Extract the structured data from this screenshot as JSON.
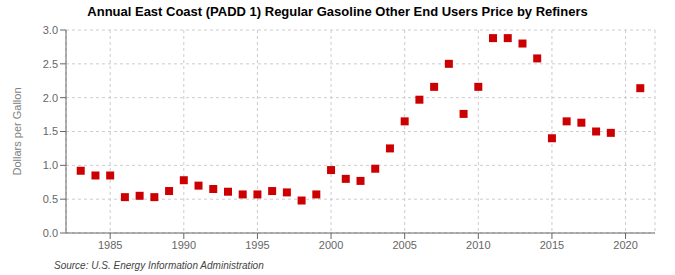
{
  "chart_data": {
    "type": "scatter",
    "title": "Annual East Coast (PADD 1) Regular Gasoline Other End Users Price by Refiners",
    "ylabel": "Dollars per Gallon",
    "annotation": "Source: U.S. Energy Information Administration",
    "x": [
      1983,
      1984,
      1985,
      1986,
      1987,
      1988,
      1989,
      1990,
      1991,
      1992,
      1993,
      1994,
      1995,
      1996,
      1997,
      1998,
      1999,
      2000,
      2001,
      2002,
      2003,
      2004,
      2005,
      2006,
      2007,
      2008,
      2009,
      2010,
      2011,
      2012,
      2013,
      2014,
      2015,
      2016,
      2017,
      2018,
      2019,
      2021
    ],
    "values": [
      0.92,
      0.85,
      0.85,
      0.53,
      0.55,
      0.53,
      0.62,
      0.78,
      0.7,
      0.65,
      0.61,
      0.57,
      0.57,
      0.62,
      0.6,
      0.48,
      0.57,
      0.93,
      0.8,
      0.77,
      0.95,
      1.25,
      1.65,
      1.97,
      2.16,
      2.5,
      1.76,
      2.16,
      2.88,
      2.88,
      2.8,
      2.58,
      1.4,
      1.65,
      1.63,
      1.5,
      1.48,
      2.14
    ],
    "color": "#cc0000",
    "marker": "square",
    "xlim": [
      1982,
      2022
    ],
    "ylim": [
      0.0,
      3.0
    ],
    "xticks": [
      1985,
      1990,
      1995,
      2000,
      2005,
      2010,
      2015,
      2020
    ],
    "yticks": [
      {
        "value": 0,
        "label": "0.0"
      },
      0.5,
      {
        "value": 1,
        "label": "1.0"
      },
      1.5,
      {
        "value": 2,
        "label": "2.0"
      },
      2.5,
      {
        "value": 3,
        "label": "3.0"
      }
    ],
    "grid": true
  }
}
